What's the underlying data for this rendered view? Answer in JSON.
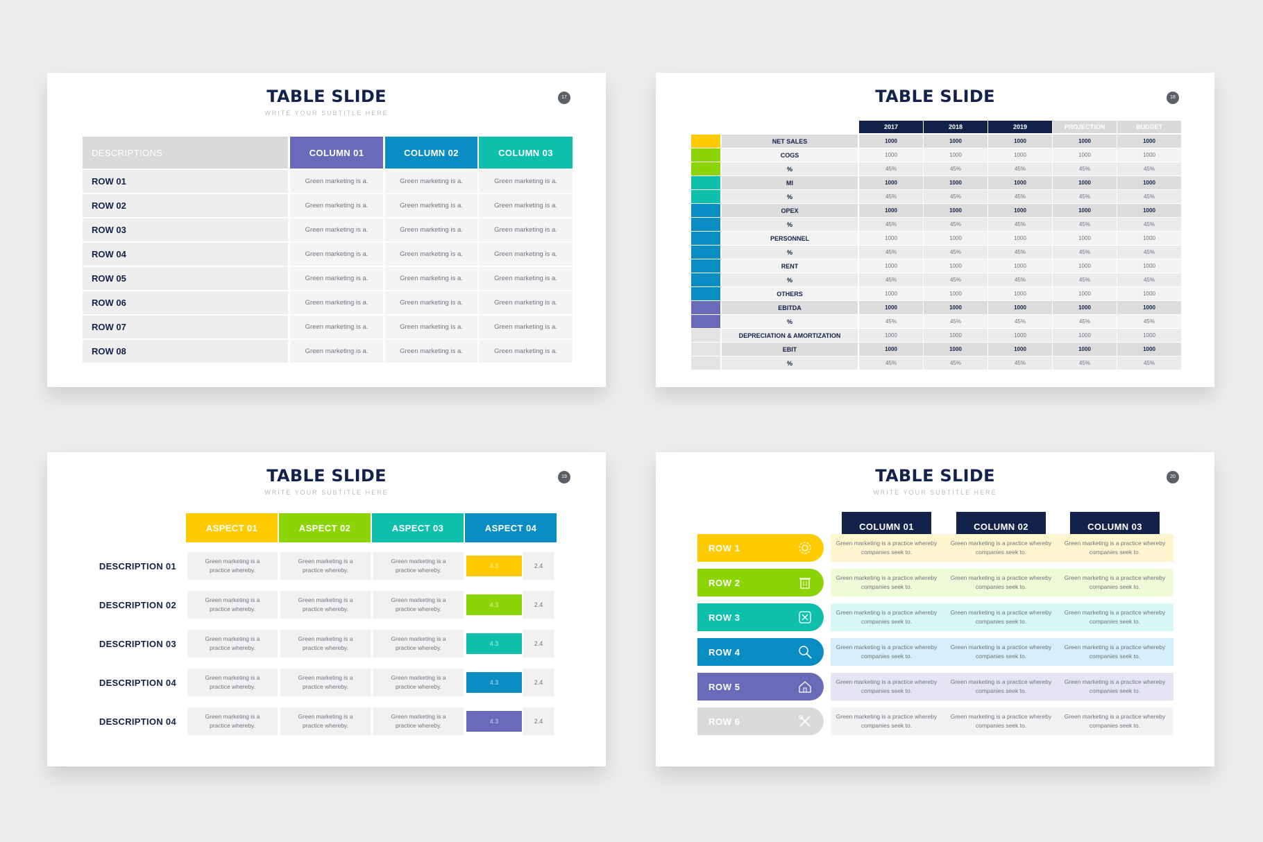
{
  "colors": {
    "navy": "#13224a",
    "purple": "#6a6bb8",
    "blue": "#0a8dc3",
    "teal": "#0ebfae",
    "green": "#8dd407",
    "yellow": "#fecb02",
    "gray": "#d9d9d9"
  },
  "slide1": {
    "title": "TABLE SLIDE",
    "subtitle": "WRITE YOUR SUBTITLE HERE",
    "page": "17",
    "header_desc": "DESCRIPTIONS",
    "columns": [
      "COLUMN 01",
      "COLUMN 02",
      "COLUMN 03"
    ],
    "rows": [
      {
        "label": "ROW 01",
        "cells": [
          "Green marketing is a.",
          "Green marketing is a.",
          "Green marketing is a."
        ]
      },
      {
        "label": "ROW 02",
        "cells": [
          "Green marketing is a.",
          "Green marketing is a.",
          "Green marketing is a."
        ]
      },
      {
        "label": "ROW 03",
        "cells": [
          "Green marketing is a.",
          "Green marketing is a.",
          "Green marketing is a."
        ]
      },
      {
        "label": "ROW 04",
        "cells": [
          "Green marketing is a.",
          "Green marketing is a.",
          "Green marketing is a."
        ]
      },
      {
        "label": "ROW 05",
        "cells": [
          "Green marketing is a.",
          "Green marketing is a.",
          "Green marketing is a."
        ]
      },
      {
        "label": "ROW 06",
        "cells": [
          "Green marketing is a.",
          "Green marketing is a.",
          "Green marketing is a."
        ]
      },
      {
        "label": "ROW 07",
        "cells": [
          "Green marketing is a.",
          "Green marketing is a.",
          "Green marketing is a."
        ]
      },
      {
        "label": "ROW 08",
        "cells": [
          "Green marketing is a.",
          "Green marketing is a.",
          "Green marketing is a."
        ]
      }
    ]
  },
  "slide2": {
    "title": "TABLE SLIDE",
    "page": "18",
    "columns": [
      "2017",
      "2018",
      "2019",
      "PROJECTION",
      "BUDGET"
    ],
    "rows": [
      {
        "label": "NET SALES",
        "values": [
          "1000",
          "1000",
          "1000",
          "1000",
          "1000"
        ],
        "bold": true,
        "swatch": "yellow"
      },
      {
        "label": "COGS",
        "values": [
          "1000",
          "1000",
          "1000",
          "1000",
          "1000"
        ],
        "bold": false,
        "swatch": "green"
      },
      {
        "label": "%",
        "values": [
          "45%",
          "45%",
          "45%",
          "45%",
          "45%"
        ],
        "bold": false,
        "swatch": "green"
      },
      {
        "label": "MI",
        "values": [
          "1000",
          "1000",
          "1000",
          "1000",
          "1000"
        ],
        "bold": true,
        "swatch": "teal"
      },
      {
        "label": "%",
        "values": [
          "45%",
          "45%",
          "45%",
          "45%",
          "45%"
        ],
        "bold": false,
        "swatch": "teal"
      },
      {
        "label": "OPEX",
        "values": [
          "1000",
          "1000",
          "1000",
          "1000",
          "1000"
        ],
        "bold": true,
        "swatch": "blue"
      },
      {
        "label": "%",
        "values": [
          "45%",
          "45%",
          "45%",
          "45%",
          "45%"
        ],
        "bold": false,
        "swatch": "blue"
      },
      {
        "label": "PERSONNEL",
        "values": [
          "1000",
          "1000",
          "1000",
          "1000",
          "1000"
        ],
        "bold": false,
        "swatch": "blue"
      },
      {
        "label": "%",
        "values": [
          "45%",
          "45%",
          "45%",
          "45%",
          "45%"
        ],
        "bold": false,
        "swatch": "blue"
      },
      {
        "label": "RENT",
        "values": [
          "1000",
          "1000",
          "1000",
          "1000",
          "1000"
        ],
        "bold": false,
        "swatch": "blue"
      },
      {
        "label": "%",
        "values": [
          "45%",
          "45%",
          "45%",
          "45%",
          "45%"
        ],
        "bold": false,
        "swatch": "blue"
      },
      {
        "label": "OTHERS",
        "values": [
          "1000",
          "1000",
          "1000",
          "1000",
          "1000"
        ],
        "bold": false,
        "swatch": "blue"
      },
      {
        "label": "EBITDA",
        "values": [
          "1000",
          "1000",
          "1000",
          "1000",
          "1000"
        ],
        "bold": true,
        "swatch": "purple"
      },
      {
        "label": "%",
        "values": [
          "45%",
          "45%",
          "45%",
          "45%",
          "45%"
        ],
        "bold": false,
        "swatch": "purple"
      },
      {
        "label": "DEPRECIATION & AMORTIZATION",
        "values": [
          "1000",
          "1000",
          "1000",
          "1000",
          "1000"
        ],
        "bold": false,
        "swatch": "light"
      },
      {
        "label": "EBIT",
        "values": [
          "1000",
          "1000",
          "1000",
          "1000",
          "1000"
        ],
        "bold": true,
        "swatch": "light"
      },
      {
        "label": "%",
        "values": [
          "45%",
          "45%",
          "45%",
          "45%",
          "45%"
        ],
        "bold": false,
        "swatch": "light"
      }
    ]
  },
  "slide3": {
    "title": "TABLE SLIDE",
    "subtitle": "WRITE YOUR SUBTITLE HERE",
    "page": "19",
    "aspects": [
      "ASPECT 01",
      "ASPECT 02",
      "ASPECT 03",
      "ASPECT 04"
    ],
    "rows": [
      {
        "label": "DESCRIPTION 01",
        "cells": [
          "Green marketing is a practice whereby.",
          "Green marketing is a practice whereby.",
          "Green marketing is a practice whereby."
        ],
        "score": "4.3",
        "alt": "2.4",
        "color": "yellow"
      },
      {
        "label": "DESCRIPTION 02",
        "cells": [
          "Green marketing is a practice whereby.",
          "Green marketing is a practice whereby.",
          "Green marketing is a practice whereby."
        ],
        "score": "4.3",
        "alt": "2.4",
        "color": "green"
      },
      {
        "label": "DESCRIPTION 03",
        "cells": [
          "Green marketing is a practice whereby.",
          "Green marketing is a practice whereby.",
          "Green marketing is a practice whereby."
        ],
        "score": "4.3",
        "alt": "2.4",
        "color": "teal"
      },
      {
        "label": "DESCRIPTION 04",
        "cells": [
          "Green marketing is a practice whereby.",
          "Green marketing is a practice whereby.",
          "Green marketing is a practice whereby."
        ],
        "score": "4.3",
        "alt": "2.4",
        "color": "blue"
      },
      {
        "label": "DESCRIPTION 04",
        "cells": [
          "Green marketing is a practice whereby.",
          "Green marketing is a practice whereby.",
          "Green marketing is a practice whereby."
        ],
        "score": "4.3",
        "alt": "2.4",
        "color": "purple"
      }
    ]
  },
  "slide4": {
    "title": "TABLE SLIDE",
    "subtitle": "WRITE YOUR SUBTITLE HERE",
    "page": "20",
    "columns": [
      "COLUMN 01",
      "COLUMN 02",
      "COLUMN 03"
    ],
    "rows": [
      {
        "label": "ROW 1",
        "icon": "gear-icon",
        "color": "#fecb02",
        "bg": "#fff6d0",
        "cells": [
          "Green marketing is a practice whereby companies seek to.",
          "Green marketing is a practice whereby companies seek to.",
          "Green marketing is a practice whereby companies seek to."
        ]
      },
      {
        "label": "ROW 2",
        "icon": "trash-icon",
        "color": "#8dd407",
        "bg": "#eefad8",
        "cells": [
          "Green marketing is a practice whereby companies seek to.",
          "Green marketing is a practice whereby companies seek to.",
          "Green marketing is a practice whereby companies seek to."
        ]
      },
      {
        "label": "ROW 3",
        "icon": "puzzle-icon",
        "color": "#0ebfae",
        "bg": "#d6f7f3",
        "cells": [
          "Green marketing is a practice whereby companies seek to.",
          "Green marketing is a practice whereby companies seek to.",
          "Green marketing is a practice whereby companies seek to."
        ]
      },
      {
        "label": "ROW 4",
        "icon": "search-icon",
        "color": "#0a8dc3",
        "bg": "#d5eef8",
        "cells": [
          "Green marketing is a practice whereby companies seek to.",
          "Green marketing is a practice whereby companies seek to.",
          "Green marketing is a practice whereby companies seek to."
        ]
      },
      {
        "label": "ROW 5",
        "icon": "house-icon",
        "color": "#6a6bb8",
        "bg": "#e4e4f3",
        "cells": [
          "Green marketing is a practice whereby companies seek to.",
          "Green marketing is a practice whereby companies seek to.",
          "Green marketing is a practice whereby companies seek to."
        ]
      },
      {
        "label": "ROW 6",
        "icon": "tools-icon",
        "color": "#d9d9d9",
        "bg": "#f2f2f2",
        "cells": [
          "Green marketing is a practice whereby companies seek to.",
          "Green marketing is a practice whereby companies seek to.",
          "Green marketing is a practice whereby companies seek to."
        ]
      }
    ]
  }
}
